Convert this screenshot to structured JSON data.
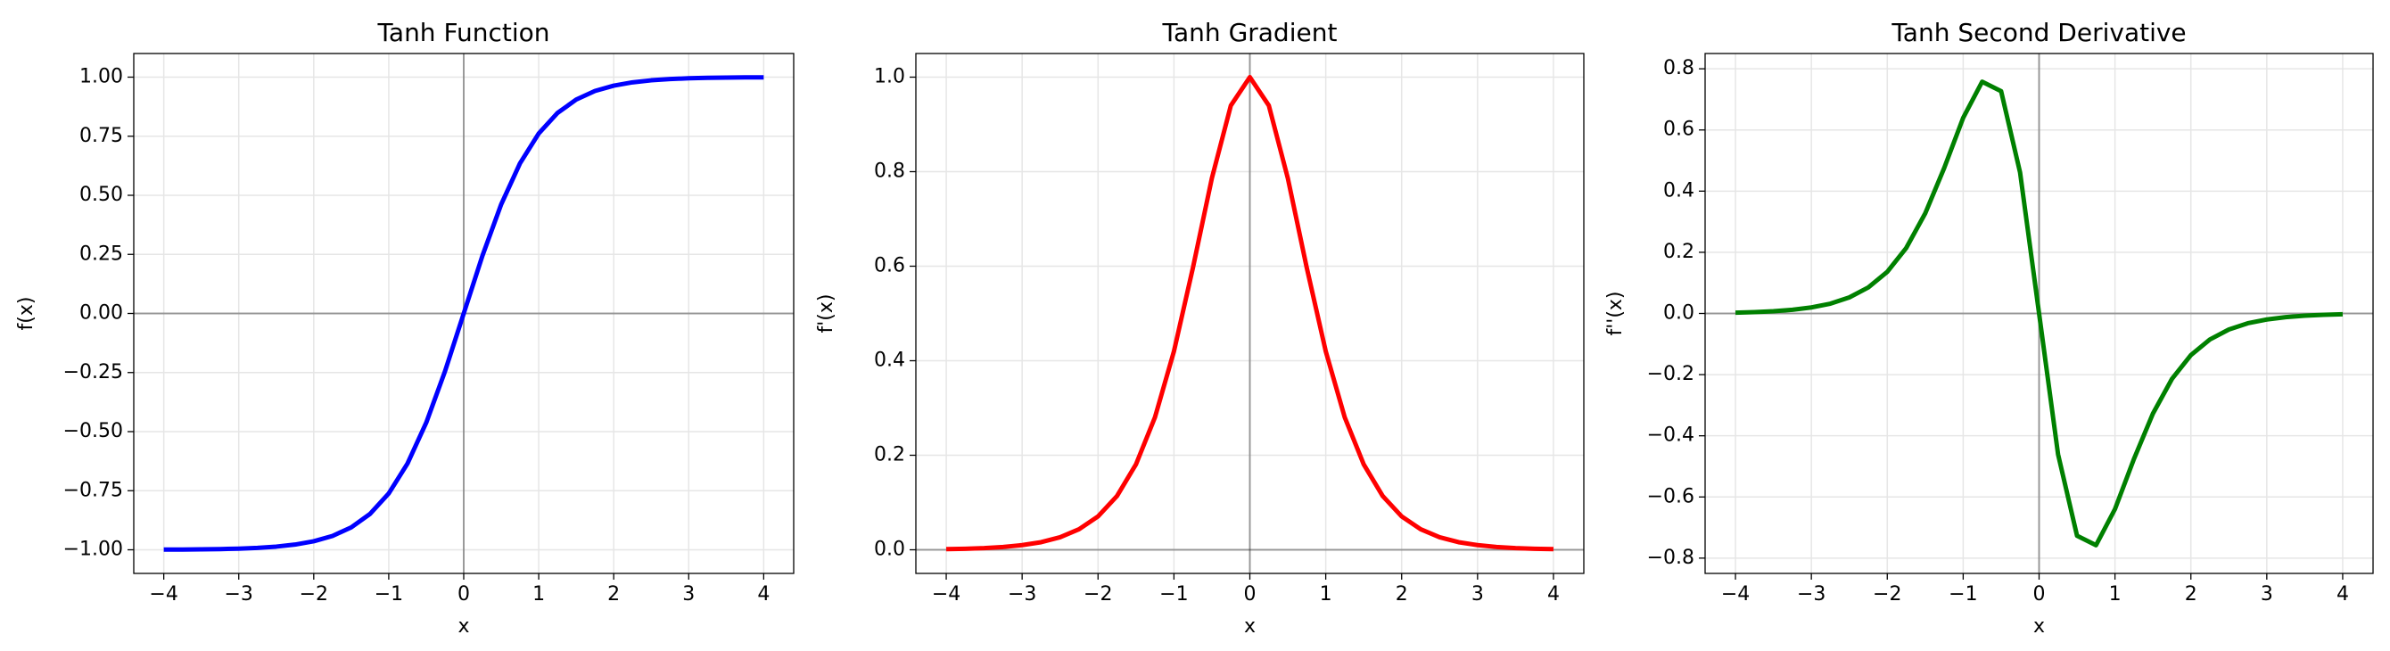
{
  "chart_data": [
    {
      "type": "line",
      "title": "Tanh Function",
      "xlabel": "x",
      "ylabel": "f(x)",
      "color": "#0000ff",
      "grid": true,
      "x": [
        -4,
        -3.75,
        -3.5,
        -3.25,
        -3,
        -2.75,
        -2.5,
        -2.25,
        -2,
        -1.75,
        -1.5,
        -1.25,
        -1,
        -0.75,
        -0.5,
        -0.25,
        0,
        0.25,
        0.5,
        0.75,
        1,
        1.25,
        1.5,
        1.75,
        2,
        2.25,
        2.5,
        2.75,
        3,
        3.25,
        3.5,
        3.75,
        4
      ],
      "values": [
        -0.9993,
        -0.9989,
        -0.9982,
        -0.997,
        -0.9951,
        -0.9919,
        -0.9866,
        -0.978,
        -0.964,
        -0.9414,
        -0.9051,
        -0.8483,
        -0.7616,
        -0.6351,
        -0.4621,
        -0.2449,
        0,
        0.2449,
        0.4621,
        0.6351,
        0.7616,
        0.8483,
        0.9051,
        0.9414,
        0.964,
        0.978,
        0.9866,
        0.9919,
        0.9951,
        0.997,
        0.9982,
        0.9989,
        0.9993
      ],
      "xlim": [
        -4.4,
        4.4
      ],
      "ylim": [
        -1.1,
        1.1
      ],
      "xticks": [
        {
          "value": -4,
          "label": "−4"
        },
        {
          "value": -3,
          "label": "−3"
        },
        {
          "value": -2,
          "label": "−2"
        },
        {
          "value": -1,
          "label": "−1"
        },
        0,
        1,
        2,
        3,
        4
      ],
      "yticks": [
        {
          "value": -1,
          "label": "−1.00"
        },
        {
          "value": -0.75,
          "label": "−0.75"
        },
        {
          "value": -0.5,
          "label": "−0.50"
        },
        {
          "value": -0.25,
          "label": "−0.25"
        },
        {
          "value": 0,
          "label": "0.00"
        },
        0.25,
        {
          "value": 0.5,
          "label": "0.50"
        },
        0.75,
        {
          "value": 1,
          "label": "1.00"
        }
      ]
    },
    {
      "type": "line",
      "title": "Tanh Gradient",
      "xlabel": "x",
      "ylabel": "f'(x)",
      "color": "#ff0000",
      "grid": true,
      "x": [
        -4,
        -3.75,
        -3.5,
        -3.25,
        -3,
        -2.75,
        -2.5,
        -2.25,
        -2,
        -1.75,
        -1.5,
        -1.25,
        -1,
        -0.75,
        -0.5,
        -0.25,
        0,
        0.25,
        0.5,
        0.75,
        1,
        1.25,
        1.5,
        1.75,
        2,
        2.25,
        2.5,
        2.75,
        3,
        3.25,
        3.5,
        3.75,
        4
      ],
      "values": [
        0.0013,
        0.0022,
        0.0036,
        0.006,
        0.0099,
        0.0161,
        0.0266,
        0.0435,
        0.0707,
        0.1138,
        0.1808,
        0.2804,
        0.42,
        0.5966,
        0.7864,
        0.94,
        1,
        0.94,
        0.7864,
        0.5966,
        0.42,
        0.2804,
        0.1808,
        0.1138,
        0.0707,
        0.0435,
        0.0266,
        0.0161,
        0.0099,
        0.006,
        0.0036,
        0.0022,
        0.0013
      ],
      "xlim": [
        -4.4,
        4.4
      ],
      "ylim": [
        -0.05,
        1.05
      ],
      "xticks": [
        {
          "value": -4,
          "label": "−4"
        },
        {
          "value": -3,
          "label": "−3"
        },
        {
          "value": -2,
          "label": "−2"
        },
        {
          "value": -1,
          "label": "−1"
        },
        0,
        1,
        2,
        3,
        4
      ],
      "yticks": [
        {
          "value": 0,
          "label": "0.0"
        },
        0.2,
        0.4,
        0.6,
        0.8,
        {
          "value": 1,
          "label": "1.0"
        }
      ]
    },
    {
      "type": "line",
      "title": "Tanh Second Derivative",
      "xlabel": "x",
      "ylabel": "f''(x)",
      "color": "#008000",
      "grid": true,
      "x": [
        -4,
        -3.75,
        -3.5,
        -3.25,
        -3,
        -2.75,
        -2.5,
        -2.25,
        -2,
        -1.75,
        -1.5,
        -1.25,
        -1,
        -0.75,
        -0.5,
        -0.25,
        0,
        0.25,
        0.5,
        0.75,
        1,
        1.25,
        1.5,
        1.75,
        2,
        2.25,
        2.5,
        2.75,
        3,
        3.25,
        3.5,
        3.75,
        4
      ],
      "values": [
        0.0026,
        0.0044,
        0.0072,
        0.012,
        0.0197,
        0.0319,
        0.0525,
        0.0851,
        0.1363,
        0.2143,
        0.3273,
        0.4757,
        0.6397,
        0.7578,
        0.7268,
        0.4604,
        0,
        -0.4604,
        -0.7268,
        -0.7578,
        -0.6397,
        -0.4757,
        -0.3273,
        -0.2143,
        -0.1363,
        -0.0851,
        -0.0525,
        -0.0319,
        -0.0197,
        -0.012,
        -0.0072,
        -0.0044,
        -0.0026
      ],
      "xlim": [
        -4.4,
        4.4
      ],
      "ylim": [
        -0.85,
        0.85
      ],
      "xticks": [
        {
          "value": -4,
          "label": "−4"
        },
        {
          "value": -3,
          "label": "−3"
        },
        {
          "value": -2,
          "label": "−2"
        },
        {
          "value": -1,
          "label": "−1"
        },
        0,
        1,
        2,
        3,
        4
      ],
      "yticks": [
        {
          "value": -0.8,
          "label": "−0.8"
        },
        {
          "value": -0.6,
          "label": "−0.6"
        },
        {
          "value": -0.4,
          "label": "−0.4"
        },
        {
          "value": -0.2,
          "label": "−0.2"
        },
        {
          "value": 0,
          "label": "0.0"
        },
        0.2,
        0.4,
        0.6,
        0.8
      ]
    }
  ]
}
